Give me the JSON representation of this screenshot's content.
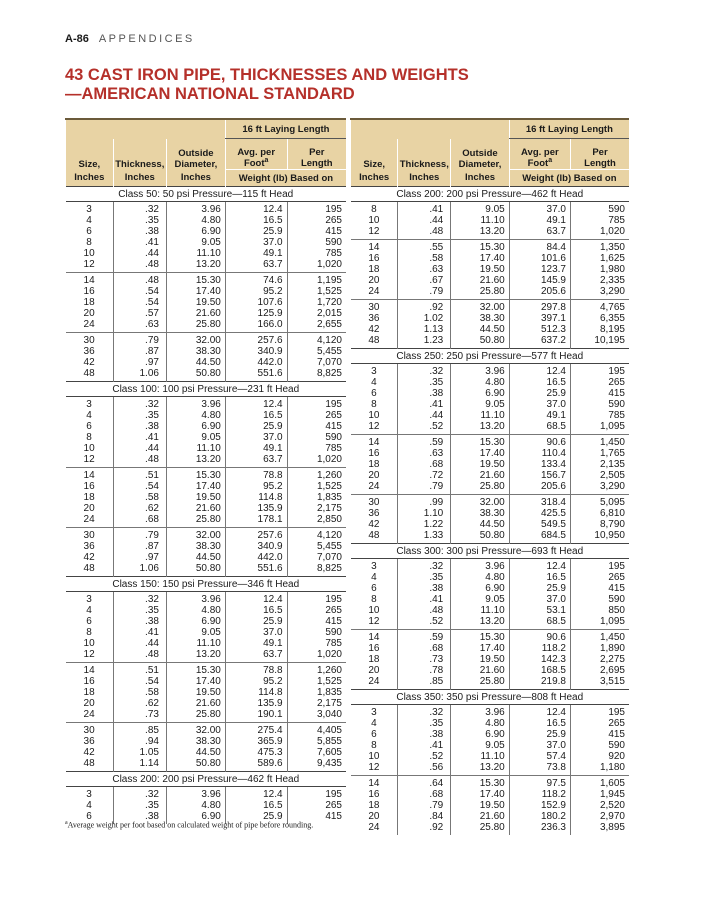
{
  "header": {
    "page": "A-86",
    "section": "APPENDICES"
  },
  "title": "43 CAST IRON PIPE, THICKNESSES AND WEIGHTS—AMERICAN NATIONAL STANDARD",
  "table": {
    "group_header": "16 ft Laying Length",
    "columns": [
      [
        "Size,",
        "Inches"
      ],
      [
        "Thickness,",
        "Inches"
      ],
      [
        "Outside",
        "Diameter,",
        "Inches"
      ],
      [
        "Avg. per",
        "Foot"
      ],
      [
        "Per",
        "Length"
      ]
    ],
    "weight_label": "Weight (lb) Based on",
    "footnote_mark": "a",
    "left": [
      {
        "caption": "Class 50: 50 psi Pressure—115 ft Head",
        "groups": [
          [
            [
              "3",
              ".32",
              "3.96",
              "12.4",
              "195"
            ],
            [
              "4",
              ".35",
              "4.80",
              "16.5",
              "265"
            ],
            [
              "6",
              ".38",
              "6.90",
              "25.9",
              "415"
            ],
            [
              "8",
              ".41",
              "9.05",
              "37.0",
              "590"
            ],
            [
              "10",
              ".44",
              "11.10",
              "49.1",
              "785"
            ],
            [
              "12",
              ".48",
              "13.20",
              "63.7",
              "1,020"
            ]
          ],
          [
            [
              "14",
              ".48",
              "15.30",
              "74.6",
              "1,195"
            ],
            [
              "16",
              ".54",
              "17.40",
              "95.2",
              "1,525"
            ],
            [
              "18",
              ".54",
              "19.50",
              "107.6",
              "1,720"
            ],
            [
              "20",
              ".57",
              "21.60",
              "125.9",
              "2,015"
            ],
            [
              "24",
              ".63",
              "25.80",
              "166.0",
              "2,655"
            ]
          ],
          [
            [
              "30",
              ".79",
              "32.00",
              "257.6",
              "4,120"
            ],
            [
              "36",
              ".87",
              "38.30",
              "340.9",
              "5,455"
            ],
            [
              "42",
              ".97",
              "44.50",
              "442.0",
              "7,070"
            ],
            [
              "48",
              "1.06",
              "50.80",
              "551.6",
              "8,825"
            ]
          ]
        ]
      },
      {
        "caption": "Class 100: 100 psi Pressure—231 ft Head",
        "groups": [
          [
            [
              "3",
              ".32",
              "3.96",
              "12.4",
              "195"
            ],
            [
              "4",
              ".35",
              "4.80",
              "16.5",
              "265"
            ],
            [
              "6",
              ".38",
              "6.90",
              "25.9",
              "415"
            ],
            [
              "8",
              ".41",
              "9.05",
              "37.0",
              "590"
            ],
            [
              "10",
              ".44",
              "11.10",
              "49.1",
              "785"
            ],
            [
              "12",
              ".48",
              "13.20",
              "63.7",
              "1,020"
            ]
          ],
          [
            [
              "14",
              ".51",
              "15.30",
              "78.8",
              "1,260"
            ],
            [
              "16",
              ".54",
              "17.40",
              "95.2",
              "1,525"
            ],
            [
              "18",
              ".58",
              "19.50",
              "114.8",
              "1,835"
            ],
            [
              "20",
              ".62",
              "21.60",
              "135.9",
              "2,175"
            ],
            [
              "24",
              ".68",
              "25.80",
              "178.1",
              "2,850"
            ]
          ],
          [
            [
              "30",
              ".79",
              "32.00",
              "257.6",
              "4,120"
            ],
            [
              "36",
              ".87",
              "38.30",
              "340.9",
              "5,455"
            ],
            [
              "42",
              ".97",
              "44.50",
              "442.0",
              "7,070"
            ],
            [
              "48",
              "1.06",
              "50.80",
              "551.6",
              "8,825"
            ]
          ]
        ]
      },
      {
        "caption": "Class 150: 150 psi Pressure—346 ft Head",
        "groups": [
          [
            [
              "3",
              ".32",
              "3.96",
              "12.4",
              "195"
            ],
            [
              "4",
              ".35",
              "4.80",
              "16.5",
              "265"
            ],
            [
              "6",
              ".38",
              "6.90",
              "25.9",
              "415"
            ],
            [
              "8",
              ".41",
              "9.05",
              "37.0",
              "590"
            ],
            [
              "10",
              ".44",
              "11.10",
              "49.1",
              "785"
            ],
            [
              "12",
              ".48",
              "13.20",
              "63.7",
              "1,020"
            ]
          ],
          [
            [
              "14",
              ".51",
              "15.30",
              "78.8",
              "1,260"
            ],
            [
              "16",
              ".54",
              "17.40",
              "95.2",
              "1,525"
            ],
            [
              "18",
              ".58",
              "19.50",
              "114.8",
              "1,835"
            ],
            [
              "20",
              ".62",
              "21.60",
              "135.9",
              "2,175"
            ],
            [
              "24",
              ".73",
              "25.80",
              "190.1",
              "3,040"
            ]
          ],
          [
            [
              "30",
              ".85",
              "32.00",
              "275.4",
              "4,405"
            ],
            [
              "36",
              ".94",
              "38.30",
              "365.9",
              "5,855"
            ],
            [
              "42",
              "1.05",
              "44.50",
              "475.3",
              "7,605"
            ],
            [
              "48",
              "1.14",
              "50.80",
              "589.6",
              "9,435"
            ]
          ]
        ]
      },
      {
        "caption": "Class 200: 200 psi Pressure—462 ft Head",
        "groups": [
          [
            [
              "3",
              ".32",
              "3.96",
              "12.4",
              "195"
            ],
            [
              "4",
              ".35",
              "4.80",
              "16.5",
              "265"
            ],
            [
              "6",
              ".38",
              "6.90",
              "25.9",
              "415"
            ]
          ]
        ]
      }
    ],
    "right": [
      {
        "caption": "Class 200: 200 psi Pressure—462 ft Head",
        "groups": [
          [
            [
              "8",
              ".41",
              "9.05",
              "37.0",
              "590"
            ],
            [
              "10",
              ".44",
              "11.10",
              "49.1",
              "785"
            ],
            [
              "12",
              ".48",
              "13.20",
              "63.7",
              "1,020"
            ]
          ],
          [
            [
              "14",
              ".55",
              "15.30",
              "84.4",
              "1,350"
            ],
            [
              "16",
              ".58",
              "17.40",
              "101.6",
              "1,625"
            ],
            [
              "18",
              ".63",
              "19.50",
              "123.7",
              "1,980"
            ],
            [
              "20",
              ".67",
              "21.60",
              "145.9",
              "2,335"
            ],
            [
              "24",
              ".79",
              "25.80",
              "205.6",
              "3,290"
            ]
          ],
          [
            [
              "30",
              ".92",
              "32.00",
              "297.8",
              "4,765"
            ],
            [
              "36",
              "1.02",
              "38.30",
              "397.1",
              "6,355"
            ],
            [
              "42",
              "1.13",
              "44.50",
              "512.3",
              "8,195"
            ],
            [
              "48",
              "1.23",
              "50.80",
              "637.2",
              "10,195"
            ]
          ]
        ]
      },
      {
        "caption": "Class 250: 250 psi Pressure—577 ft Head",
        "groups": [
          [
            [
              "3",
              ".32",
              "3.96",
              "12.4",
              "195"
            ],
            [
              "4",
              ".35",
              "4.80",
              "16.5",
              "265"
            ],
            [
              "6",
              ".38",
              "6.90",
              "25.9",
              "415"
            ],
            [
              "8",
              ".41",
              "9.05",
              "37.0",
              "590"
            ],
            [
              "10",
              ".44",
              "11.10",
              "49.1",
              "785"
            ],
            [
              "12",
              ".52",
              "13.20",
              "68.5",
              "1,095"
            ]
          ],
          [
            [
              "14",
              ".59",
              "15.30",
              "90.6",
              "1,450"
            ],
            [
              "16",
              ".63",
              "17.40",
              "110.4",
              "1,765"
            ],
            [
              "18",
              ".68",
              "19.50",
              "133.4",
              "2,135"
            ],
            [
              "20",
              ".72",
              "21.60",
              "156.7",
              "2,505"
            ],
            [
              "24",
              ".79",
              "25.80",
              "205.6",
              "3,290"
            ]
          ],
          [
            [
              "30",
              ".99",
              "32.00",
              "318.4",
              "5,095"
            ],
            [
              "36",
              "1.10",
              "38.30",
              "425.5",
              "6,810"
            ],
            [
              "42",
              "1.22",
              "44.50",
              "549.5",
              "8,790"
            ],
            [
              "48",
              "1.33",
              "50.80",
              "684.5",
              "10,950"
            ]
          ]
        ]
      },
      {
        "caption": "Class 300: 300 psi Pressure—693 ft Head",
        "groups": [
          [
            [
              "3",
              ".32",
              "3.96",
              "12.4",
              "195"
            ],
            [
              "4",
              ".35",
              "4.80",
              "16.5",
              "265"
            ],
            [
              "6",
              ".38",
              "6.90",
              "25.9",
              "415"
            ],
            [
              "8",
              ".41",
              "9.05",
              "37.0",
              "590"
            ],
            [
              "10",
              ".48",
              "11.10",
              "53.1",
              "850"
            ],
            [
              "12",
              ".52",
              "13.20",
              "68.5",
              "1,095"
            ]
          ],
          [
            [
              "14",
              ".59",
              "15.30",
              "90.6",
              "1,450"
            ],
            [
              "16",
              ".68",
              "17.40",
              "118.2",
              "1,890"
            ],
            [
              "18",
              ".73",
              "19.50",
              "142.3",
              "2,275"
            ],
            [
              "20",
              ".78",
              "21.60",
              "168.5",
              "2,695"
            ],
            [
              "24",
              ".85",
              "25.80",
              "219.8",
              "3,515"
            ]
          ]
        ]
      },
      {
        "caption": "Class 350: 350 psi Pressure—808 ft Head",
        "groups": [
          [
            [
              "3",
              ".32",
              "3.96",
              "12.4",
              "195"
            ],
            [
              "4",
              ".35",
              "4.80",
              "16.5",
              "265"
            ],
            [
              "6",
              ".38",
              "6.90",
              "25.9",
              "415"
            ],
            [
              "8",
              ".41",
              "9.05",
              "37.0",
              "590"
            ],
            [
              "10",
              ".52",
              "11.10",
              "57.4",
              "920"
            ],
            [
              "12",
              ".56",
              "13.20",
              "73.8",
              "1,180"
            ]
          ],
          [
            [
              "14",
              ".64",
              "15.30",
              "97.5",
              "1,605"
            ],
            [
              "16",
              ".68",
              "17.40",
              "118.2",
              "1,945"
            ],
            [
              "18",
              ".79",
              "19.50",
              "152.9",
              "2,520"
            ],
            [
              "20",
              ".84",
              "21.60",
              "180.2",
              "2,970"
            ],
            [
              "24",
              ".92",
              "25.80",
              "236.3",
              "3,895"
            ]
          ]
        ]
      }
    ]
  },
  "footnote": {
    "mark": "a",
    "text": "Average weight per foot based on calculated weight of pipe before rounding."
  }
}
